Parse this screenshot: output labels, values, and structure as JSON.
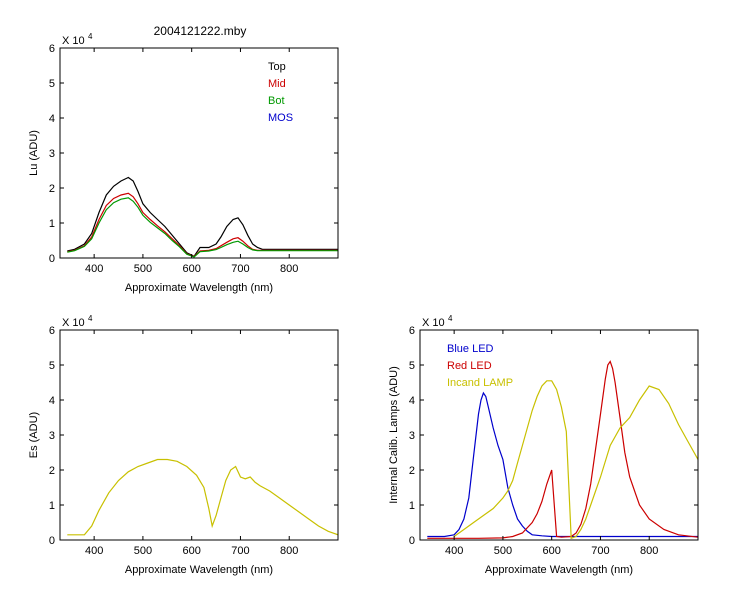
{
  "figure_title": "2004121222.mby",
  "colors": {
    "top": "#000000",
    "mid": "#cc0000",
    "bot": "#009900",
    "mos": "#0000cc",
    "es": "#c8c000",
    "blue_led": "#0000cc",
    "red_led": "#cc0000",
    "incand": "#c8c000"
  },
  "chart_data": [
    {
      "type": "line",
      "title": "2004121222.mby",
      "xlabel": "Approximate Wavelength (nm)",
      "ylabel": "Lu (ADU)",
      "y_multiplier": "X 10",
      "y_exponent": "4",
      "xlim": [
        330,
        900
      ],
      "ylim": [
        0,
        6
      ],
      "xticks": [
        400,
        500,
        600,
        700,
        800
      ],
      "yticks": [
        0,
        1,
        2,
        3,
        4,
        5,
        6
      ],
      "legend_position": "top-right",
      "series": [
        {
          "name": "Top",
          "color": "#000000",
          "x": [
            345,
            360,
            380,
            395,
            410,
            425,
            440,
            455,
            470,
            480,
            490,
            500,
            515,
            530,
            545,
            560,
            575,
            590,
            605,
            617,
            635,
            650,
            660,
            672,
            685,
            695,
            705,
            715,
            725,
            735,
            745,
            760,
            800,
            850,
            900
          ],
          "y": [
            0.2,
            0.25,
            0.4,
            0.7,
            1.3,
            1.8,
            2.05,
            2.2,
            2.3,
            2.2,
            1.9,
            1.55,
            1.3,
            1.1,
            0.9,
            0.65,
            0.4,
            0.15,
            0.05,
            0.3,
            0.3,
            0.4,
            0.6,
            0.9,
            1.1,
            1.15,
            0.95,
            0.65,
            0.4,
            0.3,
            0.25,
            0.25,
            0.25,
            0.25,
            0.25
          ]
        },
        {
          "name": "Mid",
          "color": "#cc0000",
          "x": [
            345,
            360,
            380,
            395,
            410,
            425,
            440,
            455,
            470,
            480,
            490,
            500,
            515,
            530,
            545,
            560,
            575,
            590,
            605,
            617,
            635,
            650,
            660,
            672,
            685,
            695,
            705,
            715,
            725,
            735,
            745,
            760,
            800,
            850,
            900
          ],
          "y": [
            0.18,
            0.22,
            0.35,
            0.6,
            1.1,
            1.5,
            1.7,
            1.8,
            1.85,
            1.75,
            1.55,
            1.3,
            1.1,
            0.92,
            0.75,
            0.55,
            0.35,
            0.12,
            0.04,
            0.2,
            0.22,
            0.27,
            0.35,
            0.45,
            0.55,
            0.58,
            0.48,
            0.35,
            0.25,
            0.22,
            0.22,
            0.22,
            0.22,
            0.22,
            0.22
          ]
        },
        {
          "name": "Bot",
          "color": "#009900",
          "x": [
            345,
            360,
            380,
            395,
            410,
            425,
            440,
            455,
            470,
            480,
            490,
            500,
            515,
            530,
            545,
            560,
            575,
            590,
            605,
            617,
            635,
            650,
            660,
            672,
            685,
            695,
            705,
            715,
            725,
            735,
            745,
            760,
            800,
            850,
            900
          ],
          "y": [
            0.17,
            0.21,
            0.33,
            0.55,
            1.0,
            1.38,
            1.58,
            1.68,
            1.72,
            1.62,
            1.45,
            1.22,
            1.02,
            0.86,
            0.7,
            0.5,
            0.32,
            0.11,
            0.03,
            0.18,
            0.2,
            0.24,
            0.3,
            0.38,
            0.45,
            0.48,
            0.4,
            0.3,
            0.23,
            0.21,
            0.21,
            0.21,
            0.21,
            0.21,
            0.21
          ]
        },
        {
          "name": "MOS",
          "color": "#0000cc",
          "x": [],
          "y": []
        }
      ]
    },
    {
      "type": "line",
      "xlabel": "Approximate Wavelength (nm)",
      "ylabel": "Es  (ADU)",
      "y_multiplier": "X 10",
      "y_exponent": "4",
      "xlim": [
        330,
        900
      ],
      "ylim": [
        0,
        6
      ],
      "xticks": [
        400,
        500,
        600,
        700,
        800
      ],
      "yticks": [
        0,
        1,
        2,
        3,
        4,
        5,
        6
      ],
      "series": [
        {
          "color": "#c8c000",
          "x": [
            345,
            380,
            395,
            410,
            430,
            450,
            470,
            490,
            510,
            530,
            550,
            570,
            590,
            610,
            625,
            635,
            642,
            650,
            660,
            670,
            680,
            690,
            700,
            710,
            720,
            730,
            740,
            760,
            780,
            800,
            820,
            840,
            860,
            880,
            900
          ],
          "y": [
            0.15,
            0.15,
            0.4,
            0.85,
            1.35,
            1.7,
            1.95,
            2.1,
            2.2,
            2.3,
            2.3,
            2.25,
            2.1,
            1.85,
            1.5,
            0.9,
            0.4,
            0.7,
            1.2,
            1.7,
            2.0,
            2.1,
            1.8,
            1.75,
            1.8,
            1.65,
            1.55,
            1.4,
            1.2,
            1.0,
            0.8,
            0.6,
            0.4,
            0.25,
            0.15
          ]
        }
      ]
    },
    {
      "type": "line",
      "xlabel": "Approximate Wavelength (nm)",
      "ylabel": "Internal Calib. Lamps (ADU)",
      "y_multiplier": "X 10",
      "y_exponent": "4",
      "xlim": [
        330,
        900
      ],
      "ylim": [
        0,
        6
      ],
      "xticks": [
        400,
        500,
        600,
        700,
        800
      ],
      "yticks": [
        0,
        1,
        2,
        3,
        4,
        5,
        6
      ],
      "legend_position": "top-left",
      "series": [
        {
          "name": "Blue LED",
          "color": "#0000cc",
          "x": [
            345,
            380,
            400,
            410,
            420,
            430,
            440,
            450,
            455,
            460,
            465,
            470,
            480,
            490,
            500,
            510,
            520,
            530,
            540,
            550,
            560,
            580,
            600,
            650,
            700,
            750,
            800,
            850,
            900
          ],
          "y": [
            0.1,
            0.1,
            0.15,
            0.3,
            0.6,
            1.2,
            2.4,
            3.6,
            4.0,
            4.2,
            4.1,
            3.8,
            3.2,
            2.7,
            2.3,
            1.5,
            1.0,
            0.6,
            0.4,
            0.25,
            0.15,
            0.12,
            0.1,
            0.1,
            0.1,
            0.1,
            0.1,
            0.1,
            0.1
          ]
        },
        {
          "name": "Red LED",
          "color": "#cc0000",
          "x": [
            345,
            450,
            500,
            520,
            540,
            560,
            570,
            580,
            590,
            600,
            610,
            620,
            640,
            650,
            660,
            670,
            680,
            690,
            700,
            710,
            715,
            720,
            725,
            730,
            740,
            750,
            760,
            780,
            800,
            830,
            860,
            900
          ],
          "y": [
            0.05,
            0.05,
            0.06,
            0.1,
            0.2,
            0.5,
            0.75,
            1.1,
            1.6,
            2.0,
            0.1,
            0.08,
            0.1,
            0.2,
            0.45,
            0.9,
            1.6,
            2.6,
            3.6,
            4.6,
            5.0,
            5.1,
            4.9,
            4.5,
            3.5,
            2.5,
            1.8,
            1.0,
            0.6,
            0.3,
            0.15,
            0.08
          ]
        },
        {
          "name": "Incand LAMP",
          "color": "#c8c000",
          "x": [
            400,
            420,
            440,
            460,
            480,
            500,
            510,
            520,
            530,
            540,
            560,
            570,
            580,
            590,
            600,
            610,
            620,
            630,
            640,
            650,
            660,
            670,
            680,
            700,
            720,
            740,
            760,
            780,
            800,
            820,
            840,
            860,
            880,
            900
          ],
          "y": [
            0.1,
            0.3,
            0.5,
            0.7,
            0.9,
            1.2,
            1.4,
            1.7,
            2.2,
            2.7,
            3.7,
            4.1,
            4.4,
            4.55,
            4.55,
            4.3,
            3.8,
            3.1,
            0.05,
            0.1,
            0.3,
            0.6,
            1.0,
            1.8,
            2.7,
            3.2,
            3.5,
            4.0,
            4.4,
            4.3,
            3.9,
            3.3,
            2.8,
            2.3
          ]
        }
      ]
    }
  ]
}
